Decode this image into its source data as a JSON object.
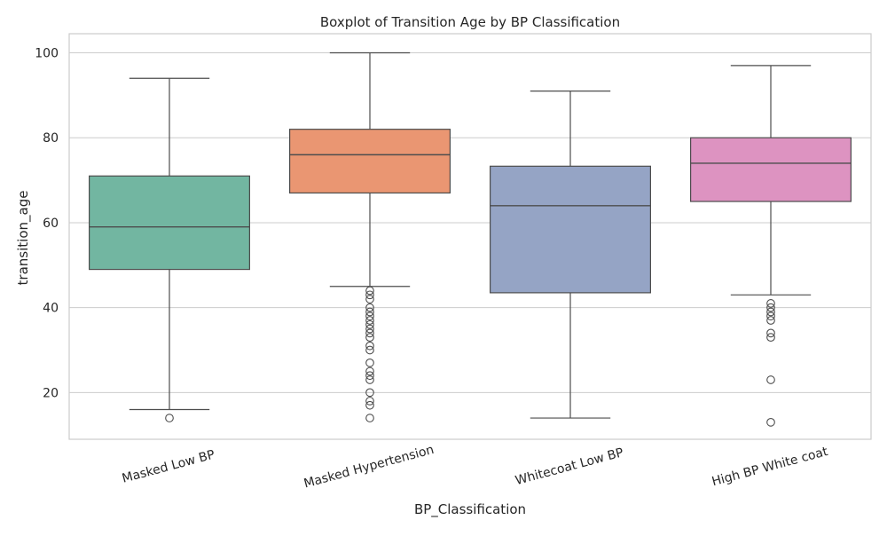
{
  "chart_data": {
    "type": "box",
    "title": "Boxplot of Transition Age by BP Classification",
    "xlabel": "BP_Classification",
    "ylabel": "transition_age",
    "ylim": [
      9,
      104.5
    ],
    "yticks": [
      20,
      40,
      60,
      80,
      100
    ],
    "grid": true,
    "categories": [
      "Masked Low BP",
      "Masked Hypertension",
      "Whitecoat Low BP",
      "High BP White coat"
    ],
    "colors": [
      "#72b6a1",
      "#ea9672",
      "#95a4c5",
      "#dd93c1"
    ],
    "boxes": [
      {
        "whisker_low": 16,
        "q1": 49,
        "median": 59,
        "q3": 71,
        "whisker_high": 94,
        "outliers": [
          14
        ]
      },
      {
        "whisker_low": 45,
        "q1": 67,
        "median": 76,
        "q3": 82,
        "whisker_high": 100,
        "outliers": [
          44,
          43,
          42,
          40,
          39,
          38,
          37,
          36,
          35,
          34,
          33,
          31,
          30,
          27,
          25,
          24,
          23,
          20,
          18,
          17,
          14
        ]
      },
      {
        "whisker_low": 14,
        "q1": 43.5,
        "median": 64,
        "q3": 73.3,
        "whisker_high": 91,
        "outliers": []
      },
      {
        "whisker_low": 43,
        "q1": 65,
        "median": 74,
        "q3": 80,
        "whisker_high": 97,
        "outliers": [
          41,
          40,
          39,
          38,
          37,
          34,
          33,
          23,
          13
        ]
      }
    ]
  }
}
